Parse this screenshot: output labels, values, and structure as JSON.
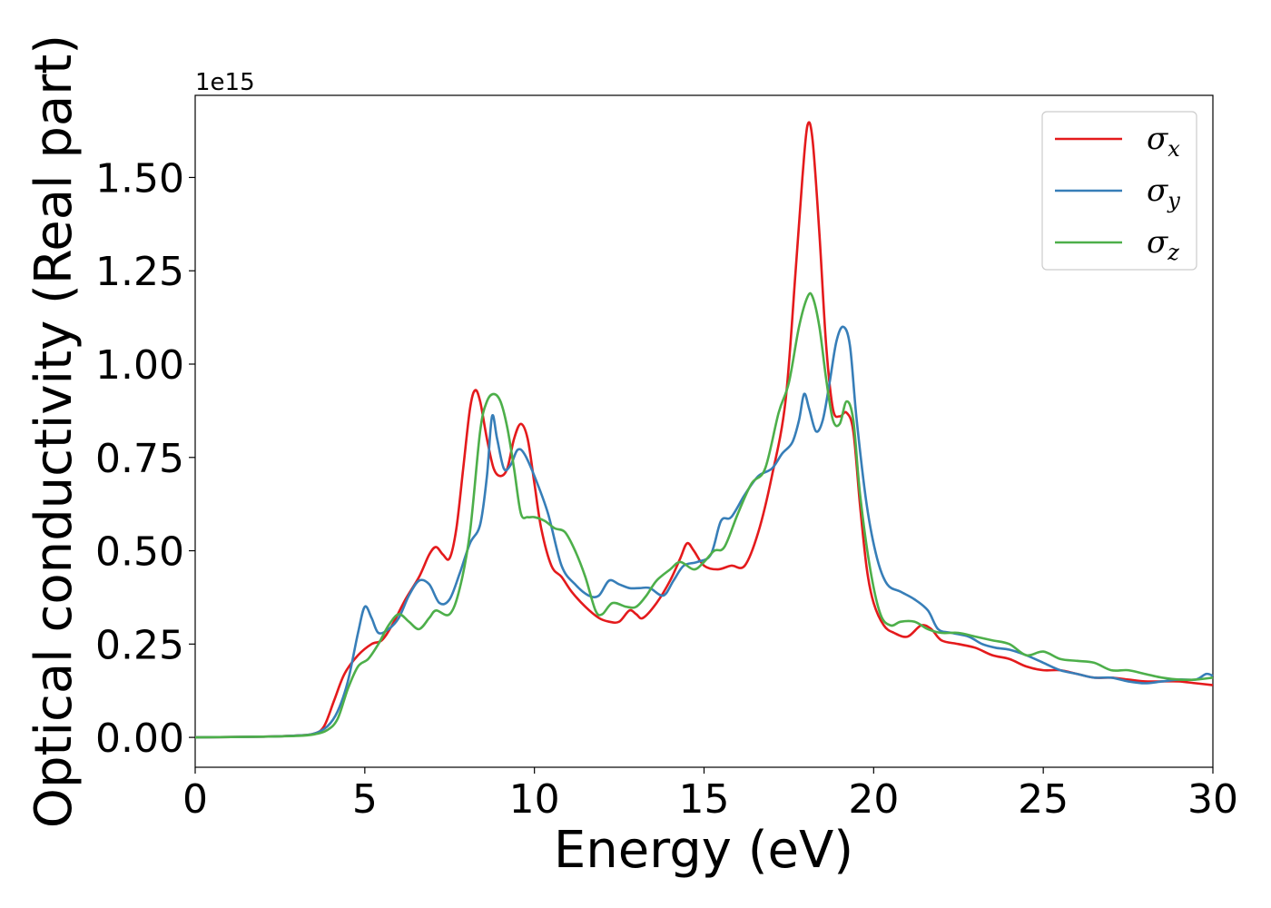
{
  "chart_data": {
    "type": "line",
    "xlabel": "Energy (eV)",
    "ylabel": "Optical conductivity (Real part)",
    "y_offset_label": "1e15",
    "xlim": [
      0,
      30
    ],
    "ylim": [
      -0.08,
      1.72
    ],
    "x_ticks": [
      0,
      5,
      10,
      15,
      20,
      25,
      30
    ],
    "x_tick_labels": [
      "0",
      "5",
      "10",
      "15",
      "20",
      "25",
      "30"
    ],
    "y_ticks": [
      0.0,
      0.25,
      0.5,
      0.75,
      1.0,
      1.25,
      1.5
    ],
    "y_tick_labels": [
      "0.00",
      "0.25",
      "0.50",
      "0.75",
      "1.00",
      "1.25",
      "1.50"
    ],
    "grid": false,
    "legend_position": "top-right",
    "series": [
      {
        "name": "σx",
        "legend_base": "σ",
        "legend_sub": "x",
        "color": "#e41a1c",
        "points": [
          [
            0,
            0
          ],
          [
            2,
            0.002
          ],
          [
            3,
            0.005
          ],
          [
            3.5,
            0.01
          ],
          [
            3.8,
            0.03
          ],
          [
            4.1,
            0.1
          ],
          [
            4.4,
            0.17
          ],
          [
            4.8,
            0.22
          ],
          [
            5.2,
            0.25
          ],
          [
            5.5,
            0.26
          ],
          [
            5.8,
            0.3
          ],
          [
            6.2,
            0.37
          ],
          [
            6.6,
            0.43
          ],
          [
            6.9,
            0.49
          ],
          [
            7.1,
            0.51
          ],
          [
            7.3,
            0.49
          ],
          [
            7.5,
            0.48
          ],
          [
            7.7,
            0.56
          ],
          [
            7.9,
            0.72
          ],
          [
            8.1,
            0.88
          ],
          [
            8.25,
            0.93
          ],
          [
            8.4,
            0.9
          ],
          [
            8.6,
            0.8
          ],
          [
            8.8,
            0.72
          ],
          [
            9.0,
            0.7
          ],
          [
            9.2,
            0.72
          ],
          [
            9.4,
            0.8
          ],
          [
            9.6,
            0.84
          ],
          [
            9.8,
            0.8
          ],
          [
            10.0,
            0.68
          ],
          [
            10.2,
            0.56
          ],
          [
            10.5,
            0.46
          ],
          [
            10.8,
            0.43
          ],
          [
            11.1,
            0.39
          ],
          [
            11.5,
            0.35
          ],
          [
            11.9,
            0.32
          ],
          [
            12.2,
            0.31
          ],
          [
            12.5,
            0.31
          ],
          [
            12.8,
            0.34
          ],
          [
            13.0,
            0.33
          ],
          [
            13.2,
            0.32
          ],
          [
            13.6,
            0.36
          ],
          [
            14.0,
            0.42
          ],
          [
            14.3,
            0.48
          ],
          [
            14.5,
            0.52
          ],
          [
            14.7,
            0.5
          ],
          [
            15.0,
            0.46
          ],
          [
            15.4,
            0.45
          ],
          [
            15.8,
            0.46
          ],
          [
            16.2,
            0.46
          ],
          [
            16.6,
            0.55
          ],
          [
            17.0,
            0.7
          ],
          [
            17.4,
            0.9
          ],
          [
            17.7,
            1.25
          ],
          [
            17.9,
            1.5
          ],
          [
            18.05,
            1.64
          ],
          [
            18.2,
            1.6
          ],
          [
            18.4,
            1.35
          ],
          [
            18.6,
            1.05
          ],
          [
            18.8,
            0.88
          ],
          [
            19.0,
            0.86
          ],
          [
            19.2,
            0.87
          ],
          [
            19.4,
            0.82
          ],
          [
            19.6,
            0.62
          ],
          [
            19.8,
            0.45
          ],
          [
            20.0,
            0.36
          ],
          [
            20.3,
            0.3
          ],
          [
            20.6,
            0.28
          ],
          [
            21.0,
            0.27
          ],
          [
            21.4,
            0.3
          ],
          [
            21.7,
            0.29
          ],
          [
            22.0,
            0.26
          ],
          [
            22.5,
            0.25
          ],
          [
            23.0,
            0.24
          ],
          [
            23.5,
            0.22
          ],
          [
            24.0,
            0.21
          ],
          [
            24.5,
            0.19
          ],
          [
            25.0,
            0.18
          ],
          [
            25.5,
            0.18
          ],
          [
            26.0,
            0.17
          ],
          [
            26.5,
            0.16
          ],
          [
            27.0,
            0.16
          ],
          [
            27.5,
            0.155
          ],
          [
            28.0,
            0.15
          ],
          [
            28.5,
            0.15
          ],
          [
            29.0,
            0.15
          ],
          [
            29.5,
            0.145
          ],
          [
            30.0,
            0.14
          ]
        ]
      },
      {
        "name": "σy",
        "legend_base": "σ",
        "legend_sub": "y",
        "color": "#377eb8",
        "points": [
          [
            0,
            0
          ],
          [
            2,
            0.002
          ],
          [
            3,
            0.005
          ],
          [
            3.5,
            0.01
          ],
          [
            3.9,
            0.03
          ],
          [
            4.2,
            0.07
          ],
          [
            4.5,
            0.15
          ],
          [
            4.8,
            0.28
          ],
          [
            5.0,
            0.35
          ],
          [
            5.2,
            0.32
          ],
          [
            5.4,
            0.28
          ],
          [
            5.7,
            0.29
          ],
          [
            6.0,
            0.32
          ],
          [
            6.3,
            0.38
          ],
          [
            6.6,
            0.42
          ],
          [
            6.9,
            0.41
          ],
          [
            7.2,
            0.36
          ],
          [
            7.5,
            0.37
          ],
          [
            7.8,
            0.44
          ],
          [
            8.1,
            0.52
          ],
          [
            8.4,
            0.57
          ],
          [
            8.6,
            0.7
          ],
          [
            8.75,
            0.86
          ],
          [
            8.9,
            0.8
          ],
          [
            9.1,
            0.72
          ],
          [
            9.3,
            0.73
          ],
          [
            9.5,
            0.77
          ],
          [
            9.7,
            0.76
          ],
          [
            10.0,
            0.7
          ],
          [
            10.4,
            0.6
          ],
          [
            10.8,
            0.46
          ],
          [
            11.2,
            0.41
          ],
          [
            11.6,
            0.38
          ],
          [
            11.9,
            0.38
          ],
          [
            12.2,
            0.42
          ],
          [
            12.5,
            0.41
          ],
          [
            12.8,
            0.4
          ],
          [
            13.1,
            0.4
          ],
          [
            13.4,
            0.4
          ],
          [
            13.8,
            0.38
          ],
          [
            14.1,
            0.42
          ],
          [
            14.4,
            0.46
          ],
          [
            14.8,
            0.47
          ],
          [
            15.2,
            0.49
          ],
          [
            15.5,
            0.58
          ],
          [
            15.8,
            0.59
          ],
          [
            16.2,
            0.65
          ],
          [
            16.6,
            0.7
          ],
          [
            17.0,
            0.72
          ],
          [
            17.3,
            0.76
          ],
          [
            17.6,
            0.79
          ],
          [
            17.8,
            0.85
          ],
          [
            17.95,
            0.92
          ],
          [
            18.1,
            0.88
          ],
          [
            18.3,
            0.82
          ],
          [
            18.5,
            0.85
          ],
          [
            18.7,
            0.95
          ],
          [
            18.9,
            1.06
          ],
          [
            19.1,
            1.1
          ],
          [
            19.3,
            1.05
          ],
          [
            19.5,
            0.85
          ],
          [
            19.8,
            0.62
          ],
          [
            20.1,
            0.48
          ],
          [
            20.4,
            0.41
          ],
          [
            20.8,
            0.39
          ],
          [
            21.2,
            0.37
          ],
          [
            21.6,
            0.34
          ],
          [
            21.9,
            0.29
          ],
          [
            22.3,
            0.28
          ],
          [
            22.8,
            0.27
          ],
          [
            23.2,
            0.25
          ],
          [
            23.6,
            0.24
          ],
          [
            24.0,
            0.235
          ],
          [
            24.5,
            0.22
          ],
          [
            25.0,
            0.2
          ],
          [
            25.5,
            0.18
          ],
          [
            26.0,
            0.17
          ],
          [
            26.5,
            0.16
          ],
          [
            27.0,
            0.16
          ],
          [
            27.5,
            0.15
          ],
          [
            28.0,
            0.145
          ],
          [
            28.5,
            0.15
          ],
          [
            29.0,
            0.155
          ],
          [
            29.5,
            0.155
          ],
          [
            29.8,
            0.17
          ],
          [
            30.0,
            0.165
          ]
        ]
      },
      {
        "name": "σz",
        "legend_base": "σ",
        "legend_sub": "z",
        "color": "#4daf4a",
        "points": [
          [
            0,
            0
          ],
          [
            2,
            0.002
          ],
          [
            3,
            0.004
          ],
          [
            3.5,
            0.008
          ],
          [
            3.9,
            0.02
          ],
          [
            4.2,
            0.05
          ],
          [
            4.5,
            0.13
          ],
          [
            4.8,
            0.19
          ],
          [
            5.1,
            0.21
          ],
          [
            5.4,
            0.25
          ],
          [
            5.7,
            0.3
          ],
          [
            6.0,
            0.33
          ],
          [
            6.3,
            0.31
          ],
          [
            6.6,
            0.29
          ],
          [
            6.9,
            0.32
          ],
          [
            7.1,
            0.34
          ],
          [
            7.5,
            0.33
          ],
          [
            7.8,
            0.4
          ],
          [
            8.1,
            0.55
          ],
          [
            8.4,
            0.82
          ],
          [
            8.6,
            0.9
          ],
          [
            8.8,
            0.92
          ],
          [
            9.0,
            0.9
          ],
          [
            9.2,
            0.83
          ],
          [
            9.4,
            0.72
          ],
          [
            9.6,
            0.6
          ],
          [
            9.8,
            0.59
          ],
          [
            10.0,
            0.59
          ],
          [
            10.3,
            0.58
          ],
          [
            10.6,
            0.56
          ],
          [
            10.9,
            0.55
          ],
          [
            11.2,
            0.5
          ],
          [
            11.5,
            0.43
          ],
          [
            11.8,
            0.34
          ],
          [
            12.0,
            0.33
          ],
          [
            12.3,
            0.36
          ],
          [
            12.7,
            0.35
          ],
          [
            13.0,
            0.35
          ],
          [
            13.3,
            0.38
          ],
          [
            13.6,
            0.42
          ],
          [
            14.0,
            0.45
          ],
          [
            14.3,
            0.47
          ],
          [
            14.7,
            0.45
          ],
          [
            15.0,
            0.47
          ],
          [
            15.3,
            0.5
          ],
          [
            15.6,
            0.51
          ],
          [
            16.0,
            0.6
          ],
          [
            16.4,
            0.68
          ],
          [
            16.8,
            0.72
          ],
          [
            17.2,
            0.87
          ],
          [
            17.5,
            0.95
          ],
          [
            17.8,
            1.1
          ],
          [
            18.05,
            1.18
          ],
          [
            18.2,
            1.18
          ],
          [
            18.4,
            1.1
          ],
          [
            18.6,
            0.96
          ],
          [
            18.8,
            0.85
          ],
          [
            19.0,
            0.84
          ],
          [
            19.2,
            0.9
          ],
          [
            19.4,
            0.85
          ],
          [
            19.6,
            0.65
          ],
          [
            19.9,
            0.45
          ],
          [
            20.2,
            0.33
          ],
          [
            20.5,
            0.3
          ],
          [
            20.8,
            0.31
          ],
          [
            21.2,
            0.31
          ],
          [
            21.6,
            0.29
          ],
          [
            22.0,
            0.28
          ],
          [
            22.5,
            0.28
          ],
          [
            23.0,
            0.27
          ],
          [
            23.5,
            0.26
          ],
          [
            24.0,
            0.25
          ],
          [
            24.5,
            0.22
          ],
          [
            25.0,
            0.23
          ],
          [
            25.5,
            0.21
          ],
          [
            26.0,
            0.205
          ],
          [
            26.5,
            0.2
          ],
          [
            27.0,
            0.18
          ],
          [
            27.5,
            0.18
          ],
          [
            28.0,
            0.17
          ],
          [
            28.5,
            0.16
          ],
          [
            29.0,
            0.155
          ],
          [
            29.5,
            0.155
          ],
          [
            30.0,
            0.16
          ]
        ]
      }
    ]
  }
}
